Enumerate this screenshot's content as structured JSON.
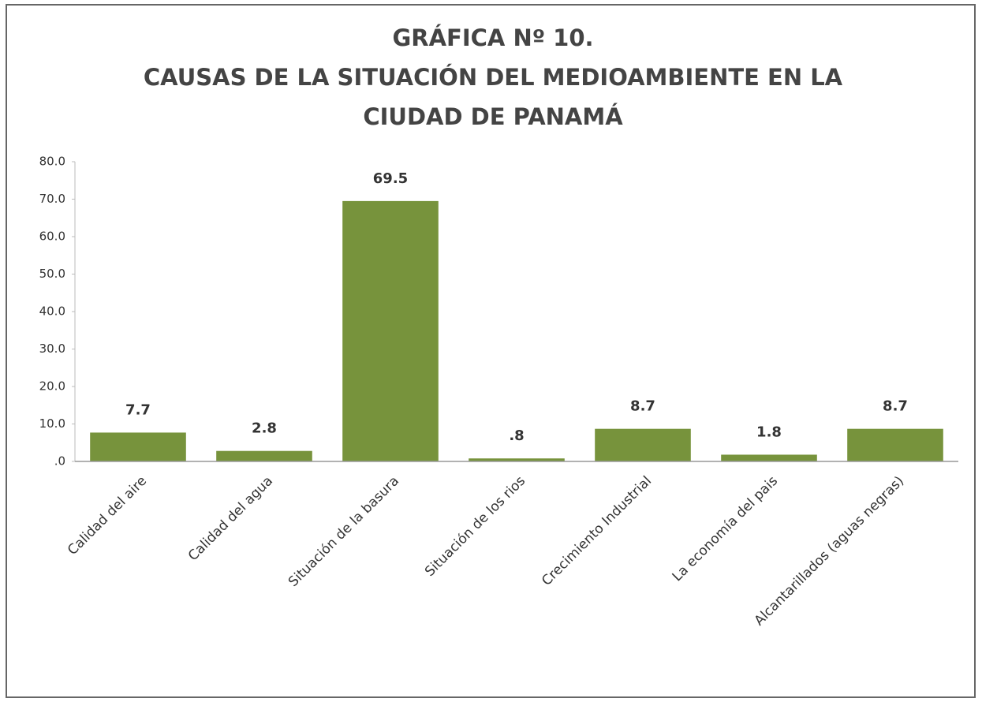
{
  "chart_data": {
    "type": "bar",
    "title": [
      "GRÁFICA Nº 10.",
      "CAUSAS DE LA SITUACIÓN DEL MEDIOAMBIENTE EN LA",
      "CIUDAD DE PANAMÁ"
    ],
    "categories": [
      "Calidad del aire",
      "Calidad del agua",
      "Situación de la basura",
      "Situación de los rios",
      "Crecimiento Industrial",
      "La economía del pais",
      "Alcantarillados (aguas negras)"
    ],
    "values": [
      7.7,
      2.8,
      69.5,
      0.8,
      8.7,
      1.8,
      8.7
    ],
    "value_labels": [
      "7.7",
      "2.8",
      "69.5",
      ".8",
      "8.7",
      "1.8",
      "8.7"
    ],
    "color": "#77933c",
    "ylim": [
      0,
      80
    ],
    "yticks": [
      {
        "value": 0,
        "label": ".0"
      },
      {
        "value": 10,
        "label": "10.0"
      },
      {
        "value": 20,
        "label": "20.0"
      },
      {
        "value": 30,
        "label": "30.0"
      },
      {
        "value": 40,
        "label": "40.0"
      },
      {
        "value": 50,
        "label": "50.0"
      },
      {
        "value": 60,
        "label": "60.0"
      },
      {
        "value": 70,
        "label": "70.0"
      },
      {
        "value": 80,
        "label": "80.0"
      }
    ],
    "grid": false
  }
}
